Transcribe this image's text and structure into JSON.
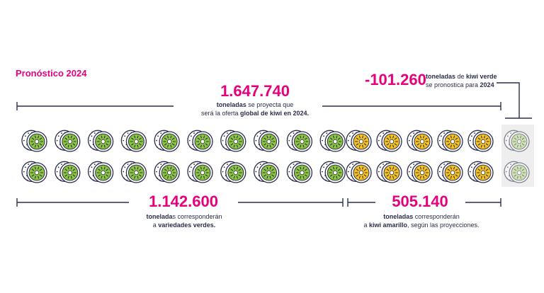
{
  "title": "Pronóstico 2024",
  "total": {
    "value": "1.647.740",
    "desc_line1_bold": "toneladas",
    "desc_line1_rest": " se proyecta que",
    "desc_line2_a": "será la oferta ",
    "desc_line2_bold": "global de kiwi en 2024."
  },
  "delta": {
    "value": "-101.260",
    "line1_bold_a": "toneladas",
    "line1_mid": " de ",
    "line1_bold_b": "kiwi verde",
    "line2_a": "se pronostica para ",
    "line2_bold": "2024"
  },
  "green": {
    "value": "1.142.600",
    "line1_bold": "tonelada",
    "line1_rest": "s corresponderán",
    "line2_a": "a ",
    "line2_bold": "variedades verdes."
  },
  "yellow": {
    "value": "505.140",
    "line1_bold": "toneladas",
    "line1_rest": " corresponderán",
    "line2_a": "a ",
    "line2_bold": "kiwi amarillo",
    "line2_rest": ", según las proyecciones."
  },
  "colors": {
    "accent": "#e6007e",
    "green_kiwi": "#8cc63f",
    "yellow_kiwi": "#f7c21b",
    "outline": "#2b2e4a",
    "faded_kiwi": "#b5d97c"
  },
  "chart_data": {
    "type": "pictogram",
    "icon": "kiwi-icon",
    "total_tonnes": 1647740,
    "categories": [
      "variedades verdes",
      "kiwi amarillo",
      "kiwi verde (reducción)"
    ],
    "values": [
      1142600,
      505140,
      -101260
    ],
    "icons_per_category": [
      20,
      10,
      2
    ]
  }
}
